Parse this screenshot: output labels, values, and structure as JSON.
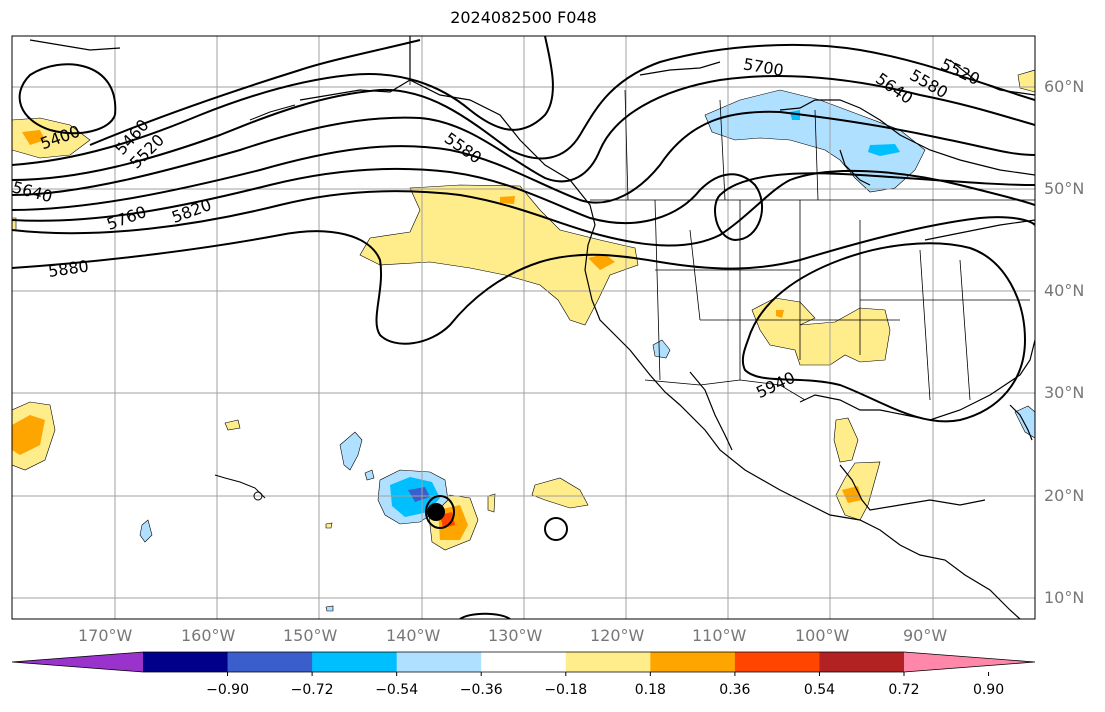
{
  "title": "2024082500 F048",
  "lon_labels": [
    "170°W",
    "160°W",
    "150°W",
    "140°W",
    "130°W",
    "120°W",
    "110°W",
    "100°W",
    "90°W"
  ],
  "lat_labels": [
    "60°N",
    "50°N",
    "40°N",
    "30°N",
    "20°N",
    "10°N"
  ],
  "contour_labels": [
    "5400",
    "5460",
    "5520",
    "5640",
    "5760",
    "5820",
    "5880",
    "5580",
    "5700",
    "5640",
    "5580",
    "5520",
    "5940"
  ],
  "colorbar": {
    "ticks": [
      "−0.90",
      "−0.72",
      "−0.54",
      "−0.36",
      "−0.18",
      "0.18",
      "0.36",
      "0.54",
      "0.72",
      "0.90"
    ],
    "colors": [
      "#9933cc",
      "#00008b",
      "#3a5fcd",
      "#00bfff",
      "#b0e0ff",
      "#ffffff",
      "#ffec8b",
      "#ffa500",
      "#ff4500",
      "#b22222",
      "#ff88aa"
    ]
  },
  "colors": {
    "grid": "#a0a0a0",
    "contour": "#000000",
    "pos_light": "#ffec8b",
    "pos_mid": "#ffa500",
    "pos_strong": "#ff4500",
    "neg_light": "#b0e0ff",
    "neg_mid": "#00bfff",
    "neg_strong": "#3a5fcd"
  }
}
